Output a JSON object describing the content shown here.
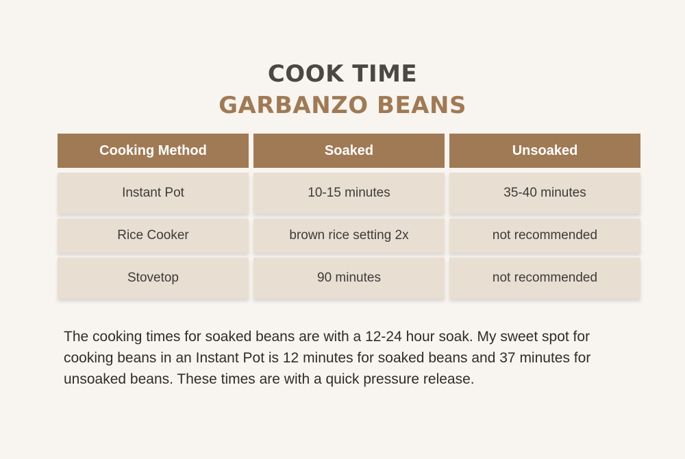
{
  "header": {
    "title": "COOK TIME",
    "subtitle": "GARBANZO BEANS"
  },
  "table": {
    "columns": [
      "Cooking Method",
      "Soaked",
      "Unsoaked"
    ],
    "rows": [
      [
        "Instant Pot",
        "10-15 minutes",
        "35-40 minutes"
      ],
      [
        "Rice Cooker",
        "brown rice setting 2x",
        "not recommended"
      ],
      [
        "Stovetop",
        "90 minutes",
        "not recommended"
      ]
    ]
  },
  "note": "The cooking times for soaked beans are with a 12-24 hour soak. My sweet spot for cooking beans in an Instant Pot is 12 minutes for soaked beans and 37 minutes for unsoaked beans. These times are with a quick pressure release.",
  "colors": {
    "background": "#f8f5f0",
    "accent": "#a07a55",
    "cell": "#e8ded2",
    "title": "#4a4745"
  }
}
